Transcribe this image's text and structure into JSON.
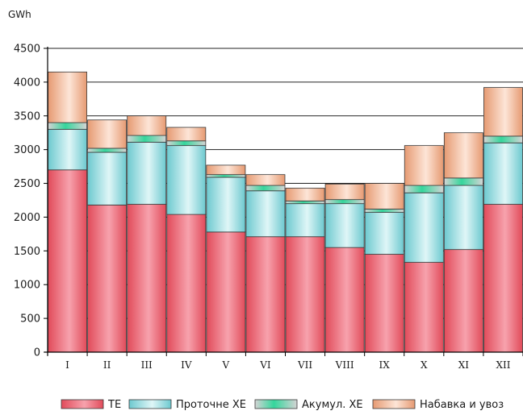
{
  "chart_data": {
    "type": "bar",
    "stacked": true,
    "ylabel": "GWh",
    "ylim": [
      0,
      4500
    ],
    "yticks": [
      0,
      500,
      1000,
      1500,
      2000,
      2500,
      3000,
      3500,
      4000,
      4500
    ],
    "ytick_labels": [
      "0",
      "500",
      "1000",
      "1500",
      "2000",
      "2500",
      "3000",
      "3500",
      "4000",
      "4500"
    ],
    "grid": true,
    "legend_position": "bottom",
    "categories": [
      "I",
      "II",
      "III",
      "IV",
      "V",
      "VI",
      "VII",
      "VIII",
      "IX",
      "X",
      "XI",
      "XII"
    ],
    "series": [
      {
        "name": "ТЕ",
        "color": "#e0505e",
        "values": [
          2700,
          2180,
          2190,
          2040,
          1780,
          1710,
          1710,
          1550,
          1450,
          1330,
          1520,
          2190
        ]
      },
      {
        "name": "Проточне ХЕ",
        "color": "#8ed6dc",
        "values": [
          600,
          780,
          920,
          1020,
          810,
          680,
          490,
          650,
          620,
          1030,
          950,
          910
        ]
      },
      {
        "name": "Акумул. ХЕ",
        "color": "#4fd9a4",
        "values": [
          100,
          60,
          100,
          70,
          40,
          80,
          40,
          60,
          50,
          110,
          110,
          100
        ]
      },
      {
        "name": "Набавка и увоз",
        "color": "#e8a27e",
        "values": [
          750,
          420,
          290,
          200,
          140,
          160,
          190,
          230,
          380,
          590,
          670,
          720
        ]
      }
    ]
  }
}
